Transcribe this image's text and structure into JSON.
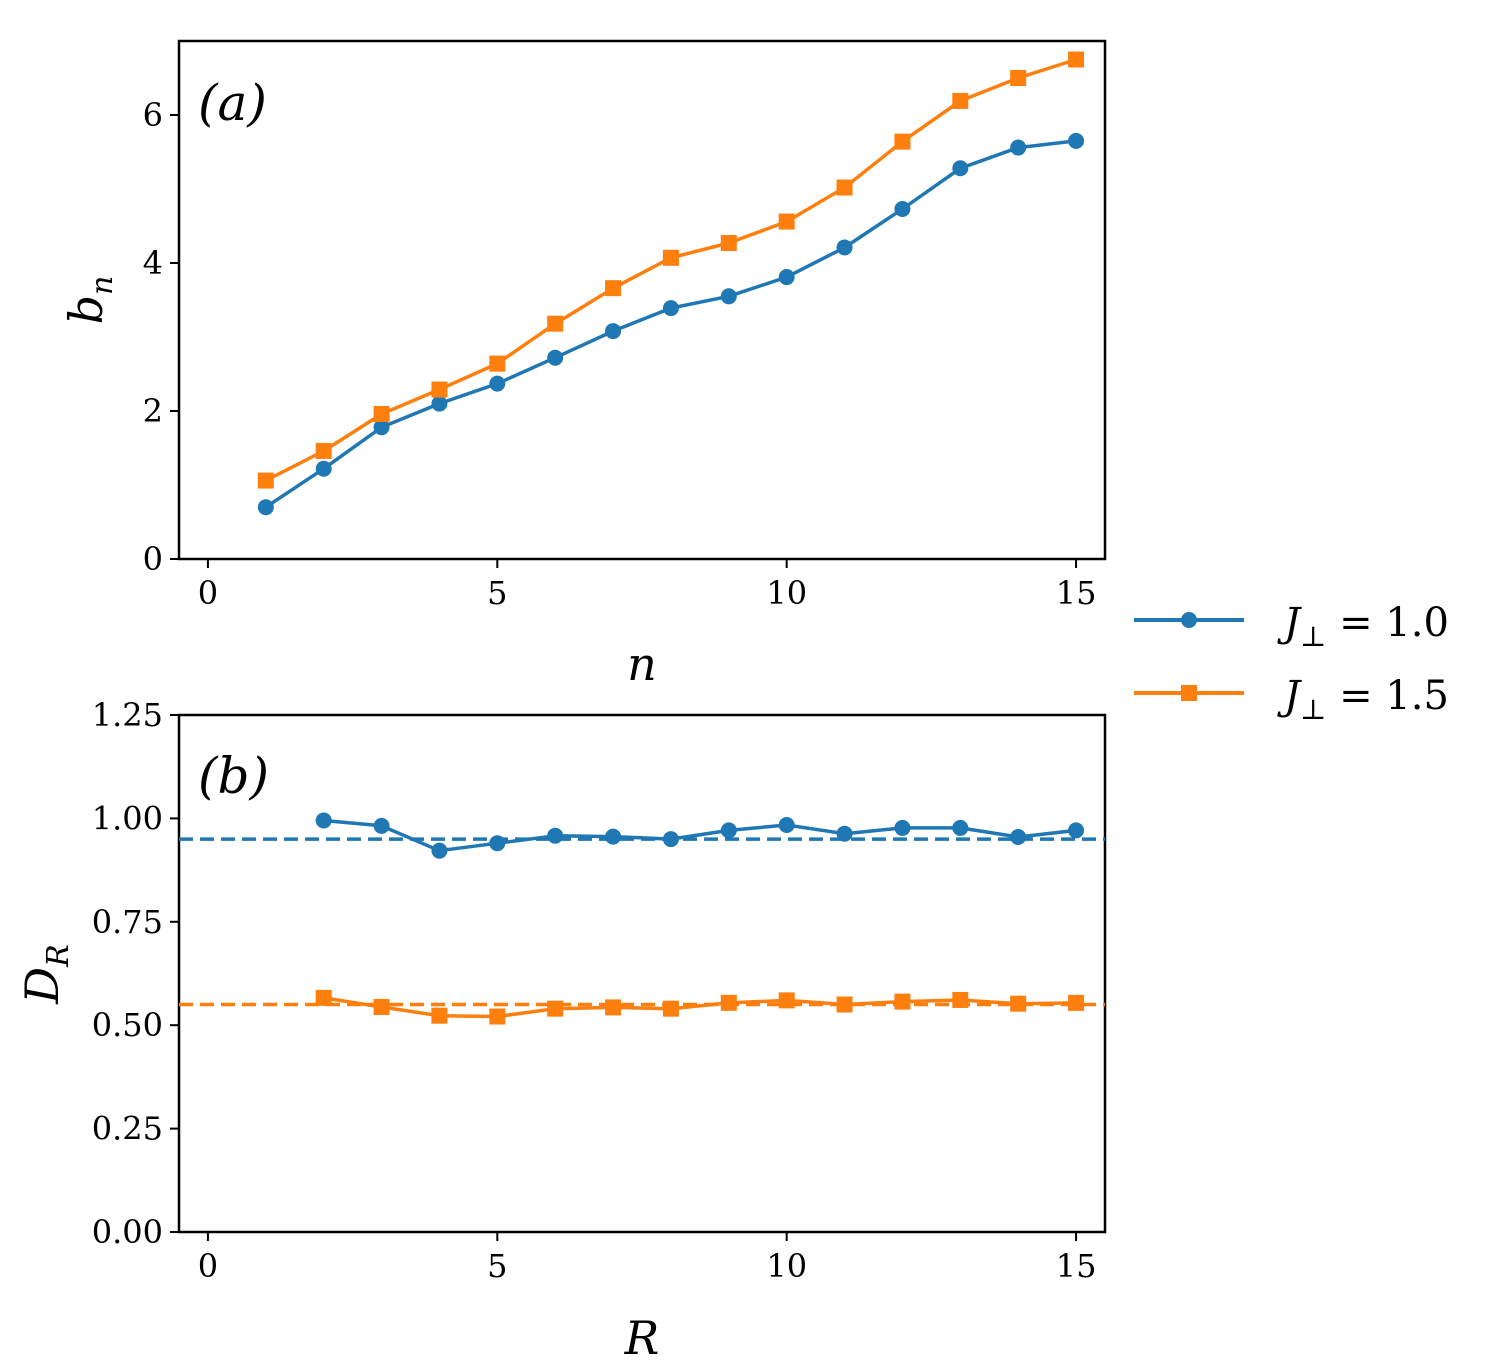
{
  "chart_data": [
    {
      "type": "line",
      "panel_label": "(a)",
      "xlabel": "n",
      "ylabel": "b",
      "ylabel_sub": "n",
      "xlim": [
        -0.5,
        15.5
      ],
      "ylim": [
        0,
        7
      ],
      "xticks": [
        0,
        5,
        10,
        15
      ],
      "xtick_labels": [
        "0",
        "5",
        "10",
        "15"
      ],
      "yticks": [
        0,
        2,
        4,
        6
      ],
      "ytick_labels": [
        "0",
        "2",
        "4",
        "6"
      ],
      "series": [
        {
          "name": "J⊥ = 1.0",
          "color": "#1f77b4",
          "marker": "circle",
          "x": [
            1,
            2,
            3,
            4,
            5,
            6,
            7,
            8,
            9,
            10,
            11,
            12,
            13,
            14,
            15
          ],
          "values": [
            0.7,
            1.22,
            1.78,
            2.1,
            2.37,
            2.72,
            3.08,
            3.39,
            3.55,
            3.81,
            4.21,
            4.73,
            5.28,
            5.56,
            5.65
          ]
        },
        {
          "name": "J⊥ = 1.5",
          "color": "#ff7f0e",
          "marker": "square",
          "x": [
            1,
            2,
            3,
            4,
            5,
            6,
            7,
            8,
            9,
            10,
            11,
            12,
            13,
            14,
            15
          ],
          "values": [
            1.06,
            1.46,
            1.96,
            2.29,
            2.64,
            3.18,
            3.66,
            4.07,
            4.27,
            4.56,
            5.02,
            5.64,
            6.19,
            6.5,
            6.75
          ]
        }
      ]
    },
    {
      "type": "line",
      "panel_label": "(b)",
      "xlabel": "R",
      "ylabel": "D",
      "ylabel_sub": "R",
      "xlim": [
        -0.5,
        15.5
      ],
      "ylim": [
        0,
        1.25
      ],
      "xticks": [
        0,
        5,
        10,
        15
      ],
      "xtick_labels": [
        "0",
        "5",
        "10",
        "15"
      ],
      "yticks": [
        0,
        0.25,
        0.5,
        0.75,
        1.0,
        1.25
      ],
      "ytick_labels": [
        "0.00",
        "0.25",
        "0.50",
        "0.75",
        "1.00",
        "1.25"
      ],
      "series": [
        {
          "name": "J⊥ = 1.0",
          "color": "#1f77b4",
          "marker": "circle",
          "x": [
            2,
            3,
            4,
            5,
            6,
            7,
            8,
            9,
            10,
            11,
            12,
            13,
            14,
            15
          ],
          "values": [
            0.995,
            0.982,
            0.922,
            0.94,
            0.958,
            0.956,
            0.95,
            0.971,
            0.984,
            0.963,
            0.977,
            0.977,
            0.955,
            0.971
          ],
          "reference": 0.95
        },
        {
          "name": "J⊥ = 1.5",
          "color": "#ff7f0e",
          "marker": "square",
          "x": [
            2,
            3,
            4,
            5,
            6,
            7,
            8,
            9,
            10,
            11,
            12,
            13,
            14,
            15
          ],
          "values": [
            0.566,
            0.544,
            0.523,
            0.521,
            0.54,
            0.543,
            0.54,
            0.554,
            0.56,
            0.55,
            0.557,
            0.561,
            0.552,
            0.554
          ],
          "reference": 0.55
        }
      ]
    }
  ],
  "legend": {
    "items": [
      {
        "prefix": "J",
        "sub": "⊥",
        "suffix": " = 1.0",
        "color": "#1f77b4",
        "marker": "circle"
      },
      {
        "prefix": "J",
        "sub": "⊥",
        "suffix": " = 1.5",
        "color": "#ff7f0e",
        "marker": "square"
      }
    ]
  }
}
